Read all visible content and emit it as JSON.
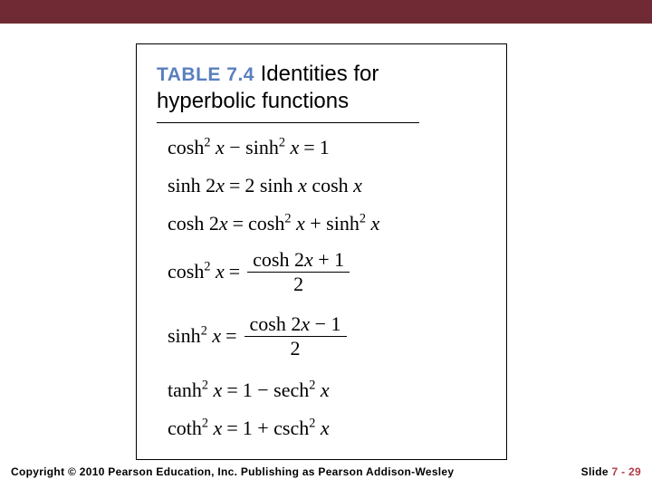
{
  "colors": {
    "top_bar": "#6f2a33",
    "table_label": "#5a7fbf",
    "slide_num": "#b23a43",
    "background": "#ffffff"
  },
  "table": {
    "label": "TABLE 7.4",
    "title_rest": "Identities for",
    "title_line2": "hyperbolic functions"
  },
  "identities": [
    {
      "type": "plain",
      "lhs": "cosh<sup>2</sup> <span class='it'>x</span>  −  sinh<sup>2</sup> <span class='it'>x</span>",
      "rhs": "1"
    },
    {
      "type": "plain",
      "lhs": "sinh 2<span class='it'>x</span>",
      "rhs": "2 sinh <span class='it'>x</span> cosh <span class='it'>x</span>"
    },
    {
      "type": "plain",
      "lhs": "cosh 2<span class='it'>x</span>",
      "rhs": "cosh<sup>2</sup> <span class='it'>x</span>  +  sinh<sup>2</sup> <span class='it'>x</span>"
    },
    {
      "type": "frac",
      "lhs": "cosh<sup>2</sup> <span class='it'>x</span>",
      "num": "cosh 2<span class='it'>x</span>  +  1",
      "den": "2"
    },
    {
      "type": "frac",
      "lhs": "sinh<sup>2</sup> <span class='it'>x</span>",
      "num": "cosh 2<span class='it'>x</span>  −  1",
      "den": "2"
    },
    {
      "type": "plain",
      "lhs": "tanh<sup>2</sup> <span class='it'>x</span>",
      "rhs": "1  −  sech<sup>2</sup> <span class='it'>x</span>"
    },
    {
      "type": "plain",
      "lhs": "coth<sup>2</sup> <span class='it'>x</span>",
      "rhs": "1  +  csch<sup>2</sup> <span class='it'>x</span>"
    }
  ],
  "footer": {
    "copyright": "Copyright © 2010 Pearson Education, Inc.  Publishing as Pearson Addison-Wesley",
    "slide_word": "Slide",
    "slide_num": "7 - 29"
  }
}
